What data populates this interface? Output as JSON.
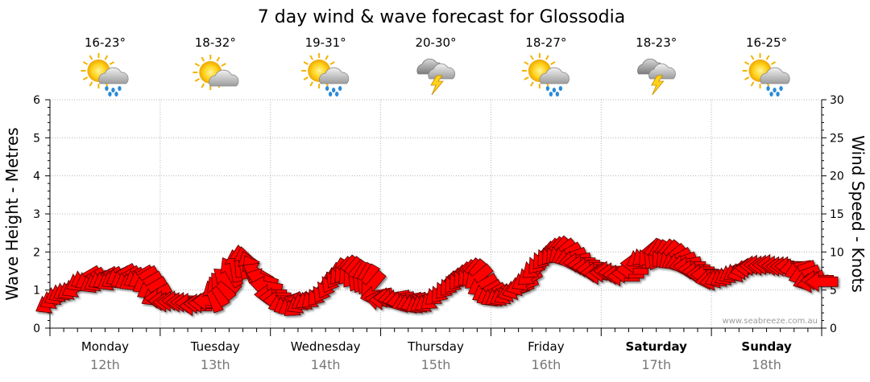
{
  "chart_data": {
    "type": "line",
    "title": "7 day wind & wave forecast for Glossodia",
    "ylabel_left": "Wave Height - Metres",
    "ylabel_right": "Wind Speed - Knots",
    "ylim_left": [
      0,
      6
    ],
    "ylim_right": [
      0,
      30
    ],
    "yticks_left": [
      "0",
      "1",
      "2",
      "3",
      "4",
      "5",
      "6"
    ],
    "yticks_right": [
      "0",
      "5",
      "10",
      "15",
      "20",
      "25",
      "30"
    ],
    "grid": "dotted",
    "credit": "www.seabreeze.com.au",
    "days": [
      {
        "name": "Monday",
        "date": "12th",
        "temp": "16-23°",
        "icon": "sun-cloud-rain-icon",
        "bold": false
      },
      {
        "name": "Tuesday",
        "date": "13th",
        "temp": "18-32°",
        "icon": "sun-cloud-icon",
        "bold": false
      },
      {
        "name": "Wednesday",
        "date": "14th",
        "temp": "19-31°",
        "icon": "sun-cloud-rain-icon",
        "bold": false
      },
      {
        "name": "Thursday",
        "date": "15th",
        "temp": "20-30°",
        "icon": "storm-cloud-icon",
        "bold": false
      },
      {
        "name": "Friday",
        "date": "16th",
        "temp": "18-27°",
        "icon": "sun-cloud-rain-icon",
        "bold": false
      },
      {
        "name": "Saturday",
        "date": "17th",
        "temp": "18-23°",
        "icon": "storm-cloud-icon",
        "bold": true
      },
      {
        "name": "Sunday",
        "date": "18th",
        "temp": "16-25°",
        "icon": "sun-cloud-rain-icon",
        "bold": true
      }
    ],
    "series": [
      {
        "name": "Wind Speed",
        "units": "knots",
        "color": "#ff0000",
        "outline": "#550000",
        "x": [
          0.0,
          0.04,
          0.08,
          0.12,
          0.16,
          0.2,
          0.24,
          0.28,
          0.32,
          0.36,
          0.4,
          0.44,
          0.48,
          0.52,
          0.56,
          0.6,
          0.64,
          0.68,
          0.72,
          0.76,
          0.8,
          0.84,
          0.88,
          0.92,
          0.96,
          1.0,
          1.04,
          1.08,
          1.12,
          1.16,
          1.2,
          1.24,
          1.28,
          1.32,
          1.36,
          1.4,
          1.44,
          1.48,
          1.52,
          1.56,
          1.6,
          1.64,
          1.68,
          1.72,
          1.76,
          1.8,
          1.84,
          1.88,
          1.92,
          1.96,
          2.0,
          2.04,
          2.08,
          2.12,
          2.16,
          2.2,
          2.24,
          2.28,
          2.32,
          2.36,
          2.4,
          2.44,
          2.48,
          2.52,
          2.56,
          2.6,
          2.64,
          2.68,
          2.72,
          2.76,
          2.8,
          2.84,
          2.88,
          2.92,
          2.96,
          3.0,
          3.04,
          3.08,
          3.12,
          3.16,
          3.2,
          3.24,
          3.28,
          3.32,
          3.36,
          3.4,
          3.44,
          3.48,
          3.52,
          3.56,
          3.6,
          3.64,
          3.68,
          3.72,
          3.76,
          3.8,
          3.84,
          3.88,
          3.92,
          3.96,
          4.0,
          4.04,
          4.08,
          4.12,
          4.16,
          4.2,
          4.24,
          4.28,
          4.32,
          4.36,
          4.4,
          4.44,
          4.48,
          4.52,
          4.56,
          4.6,
          4.64,
          4.68,
          4.72,
          4.76,
          4.8,
          4.84,
          4.88,
          4.92,
          4.96,
          5.0,
          5.04,
          5.08,
          5.12,
          5.16,
          5.2,
          5.24,
          5.28,
          5.32,
          5.36,
          5.4,
          5.44,
          5.48,
          5.52,
          5.56,
          5.6,
          5.64,
          5.68,
          5.72,
          5.76,
          5.8,
          5.84,
          5.88,
          5.92,
          5.96,
          6.0,
          6.04,
          6.08,
          6.12,
          6.16,
          6.2,
          6.24,
          6.28,
          6.32,
          6.36,
          6.4,
          6.44,
          6.48,
          6.52,
          6.56,
          6.6,
          6.64,
          6.68,
          6.72,
          6.76,
          6.8,
          6.84,
          6.88,
          6.92,
          6.96,
          7.0
        ],
        "values": [
          3.3,
          3.9,
          4.4,
          4.8,
          5.0,
          5.1,
          5.4,
          6.2,
          6.6,
          6.4,
          6.0,
          6.2,
          6.5,
          6.5,
          6.3,
          6.6,
          6.9,
          6.6,
          6.4,
          6.3,
          6.7,
          6.6,
          5.9,
          5.2,
          4.3,
          3.9,
          3.6,
          3.4,
          3.5,
          3.6,
          3.4,
          3.4,
          3.3,
          2.9,
          3.2,
          3.3,
          3.6,
          4.2,
          4.9,
          5.6,
          6.4,
          7.4,
          8.2,
          8.8,
          8.6,
          8.1,
          7.7,
          7.2,
          6.5,
          5.5,
          4.4,
          4.0,
          3.6,
          3.3,
          3.2,
          3.0,
          3.0,
          3.3,
          3.7,
          3.8,
          4.1,
          4.6,
          5.2,
          5.8,
          6.5,
          7.1,
          7.4,
          7.6,
          7.4,
          7.0,
          6.7,
          6.5,
          6.3,
          5.6,
          4.3,
          3.6,
          3.7,
          4.0,
          4.0,
          3.8,
          3.6,
          3.4,
          3.4,
          3.3,
          3.3,
          3.4,
          3.5,
          3.9,
          4.5,
          5.0,
          5.5,
          5.9,
          6.3,
          6.7,
          7.0,
          7.2,
          7.1,
          6.6,
          5.6,
          4.8,
          4.4,
          4.2,
          4.2,
          4.3,
          4.5,
          4.8,
          5.1,
          5.6,
          6.3,
          7.1,
          8.0,
          8.8,
          9.4,
          9.8,
          10.0,
          10.1,
          10.0,
          9.7,
          9.3,
          8.9,
          8.6,
          8.3,
          8.0,
          7.7,
          7.3,
          7.0,
          7.3,
          7.5,
          7.3,
          7.0,
          6.8,
          7.2,
          7.7,
          8.5,
          9.3,
          9.7,
          9.8,
          9.6,
          9.5,
          9.7,
          9.6,
          9.3,
          9.0,
          8.7,
          8.4,
          8.1,
          7.7,
          7.4,
          7.1,
          7.0,
          6.4,
          6.3,
          6.6,
          6.8,
          7.0,
          7.3,
          7.5,
          7.4,
          7.7,
          7.9,
          8.2,
          8.3,
          8.2,
          8.3,
          8.4,
          8.2,
          8.1,
          8.1,
          8.1,
          7.9,
          7.6,
          7.0,
          6.3,
          6.0,
          6.3,
          6.1
        ],
        "direction_deg": [
          60,
          60,
          60,
          60,
          60,
          60,
          60,
          60,
          60,
          60,
          60,
          60,
          60,
          60,
          60,
          60,
          60,
          60,
          60,
          60,
          60,
          60,
          60,
          60,
          60,
          90,
          90,
          90,
          90,
          90,
          90,
          90,
          90,
          90,
          90,
          90,
          90,
          160,
          150,
          140,
          130,
          150,
          170,
          175,
          170,
          160,
          150,
          120,
          110,
          100,
          90,
          90,
          90,
          70,
          60,
          60,
          50,
          60,
          60,
          60,
          50,
          40,
          30,
          30,
          30,
          30,
          40,
          40,
          40,
          40,
          30,
          30,
          30,
          40,
          80,
          100,
          90,
          90,
          80,
          80,
          80,
          70,
          70,
          70,
          60,
          60,
          60,
          50,
          50,
          40,
          40,
          40,
          40,
          40,
          40,
          40,
          40,
          50,
          60,
          60,
          60,
          60,
          60,
          60,
          60,
          70,
          70,
          70,
          60,
          50,
          50,
          40,
          40,
          40,
          40,
          40,
          50,
          60,
          70,
          80,
          90,
          90,
          90,
          90,
          90,
          90,
          90,
          90,
          90,
          90,
          90,
          90,
          90,
          90,
          60,
          50,
          40,
          30,
          30,
          40,
          40,
          50,
          60,
          70,
          80,
          90,
          90,
          90,
          90,
          90,
          80,
          80,
          70,
          60,
          60,
          60,
          60,
          70,
          80,
          90,
          90,
          90,
          90,
          90,
          90,
          90,
          90,
          90,
          90,
          80,
          70,
          70,
          70,
          80,
          90,
          90
        ]
      },
      {
        "name": "Wave Height",
        "units": "metres",
        "values": []
      }
    ]
  }
}
